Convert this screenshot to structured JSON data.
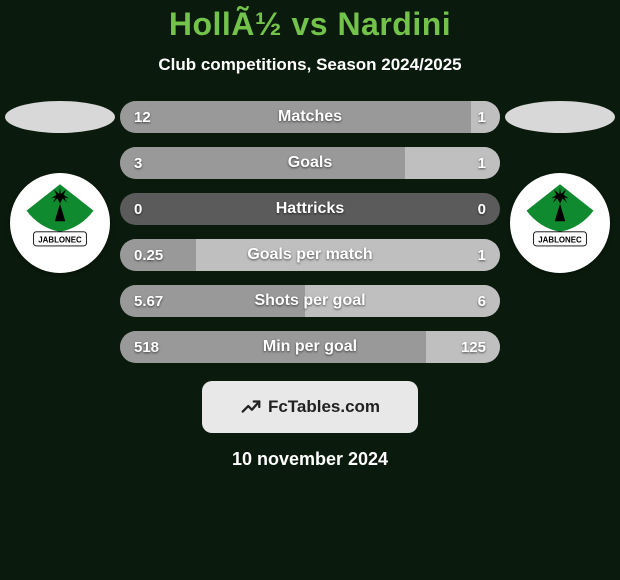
{
  "background_color": "#0a1a0c",
  "title": "HollÃ½ vs Nardini",
  "title_color": "#73c24a",
  "subtitle": "Club competitions, Season 2024/2025",
  "subtitle_color": "#ffffff",
  "ellipse_color": "#d8d8d8",
  "side_left": {
    "ellipse": true,
    "club_logo": true
  },
  "side_right": {
    "ellipse": true,
    "club_logo": true
  },
  "club_logo": {
    "circle_bg": "#ffffff",
    "green": "#0f8a2f",
    "black": "#000000",
    "text": "JABLONEC",
    "text_color": "#000000"
  },
  "bar_track_color": "#5b5b5b",
  "bar_left_color": "#999999",
  "bar_right_color": "#bfbfbf",
  "bar_label_color": "#ffffff",
  "bar_value_color": "#ffffff",
  "bars": [
    {
      "label": "Matches",
      "left_val": "12",
      "right_val": "1",
      "left_num": 12,
      "right_num": 1
    },
    {
      "label": "Goals",
      "left_val": "3",
      "right_val": "1",
      "left_num": 3,
      "right_num": 1
    },
    {
      "label": "Hattricks",
      "left_val": "0",
      "right_val": "0",
      "left_num": 0,
      "right_num": 0
    },
    {
      "label": "Goals per match",
      "left_val": "0.25",
      "right_val": "1",
      "left_num": 0.25,
      "right_num": 1
    },
    {
      "label": "Shots per goal",
      "left_val": "5.67",
      "right_val": "6",
      "left_num": 5.67,
      "right_num": 6
    },
    {
      "label": "Min per goal",
      "left_val": "518",
      "right_val": "125",
      "left_num": 518,
      "right_num": 125
    }
  ],
  "footer_badge": {
    "text": "FcTables.com",
    "bg": "#e8e8e8",
    "text_color": "#222222",
    "icon_color": "#222222"
  },
  "footer_date": "10 november 2024",
  "footer_date_color": "#ffffff"
}
